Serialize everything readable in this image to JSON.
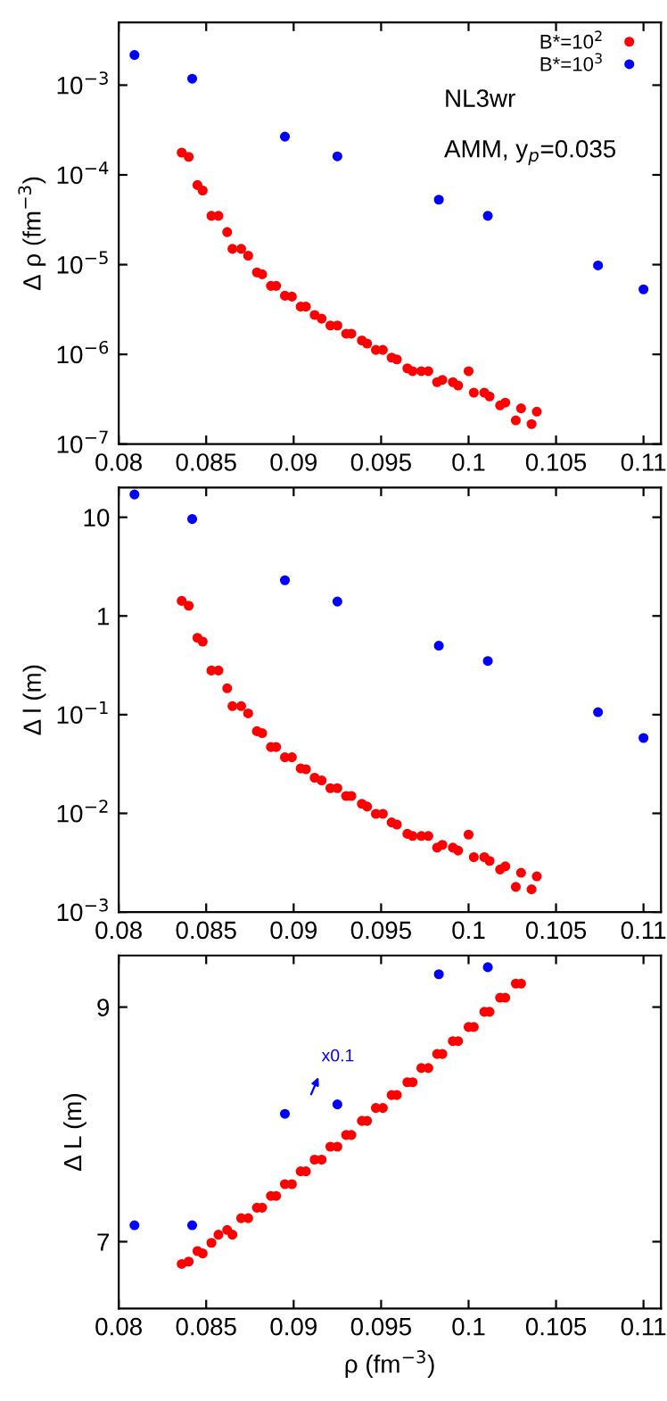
{
  "chart_data": [
    {
      "type": "scatter",
      "ylabel": "Δ ρ (fm$^{−3}$)",
      "log": "y",
      "legend": "top right",
      "marker": "circle",
      "xlim": [
        0.08,
        0.111
      ],
      "xticks": [
        0.08,
        0.085,
        0.09,
        0.095,
        0.1,
        0.105,
        0.11
      ],
      "ylim": [
        1e-07,
        0.005
      ],
      "yticks": [
        {
          "value": 1e-07,
          "label": "10$^{−7}$"
        },
        {
          "value": 1e-06,
          "label": "10$^{−6}$"
        },
        {
          "value": 1e-05,
          "label": "10$^{−5}$"
        },
        {
          "value": 0.0001,
          "label": "10$^{−4}$"
        },
        {
          "value": 0.001,
          "label": "10$^{−3}$"
        }
      ],
      "annotations": [
        "NL3wr",
        "AMM, y$_{p}$=0.035"
      ],
      "series": [
        {
          "name": "B*=10$^{2}$",
          "color": "#ff0000",
          "x": [
            0.0836,
            0.084,
            0.0845,
            0.0848,
            0.0853,
            0.0857,
            0.0862,
            0.0865,
            0.087,
            0.0874,
            0.0879,
            0.0882,
            0.0887,
            0.089,
            0.0895,
            0.0899,
            0.0904,
            0.0907,
            0.0912,
            0.0916,
            0.0921,
            0.0925,
            0.093,
            0.0933,
            0.0939,
            0.0942,
            0.0947,
            0.0951,
            0.0956,
            0.0959,
            0.0965,
            0.0968,
            0.0973,
            0.0977,
            0.0982,
            0.0985,
            0.0991,
            0.0994,
            0.1,
            0.1003,
            0.1009,
            0.1012,
            0.1018,
            0.1021,
            0.1027,
            0.103,
            0.1036,
            0.1039
          ],
          "values": [
            0.000177,
            0.000159,
            7.7e-05,
            6.7e-05,
            3.5e-05,
            3.5e-05,
            2.3e-05,
            1.5e-05,
            1.5e-05,
            1.26e-05,
            8.2e-06,
            7.8e-06,
            5.8e-06,
            5.8e-06,
            4.5e-06,
            4.4e-06,
            3.4e-06,
            3.4e-06,
            2.75e-06,
            2.5e-06,
            2.1e-06,
            2.1e-06,
            1.7e-06,
            1.7e-06,
            1.43e-06,
            1.32e-06,
            1.12e-06,
            1.12e-06,
            9.2e-07,
            8.8e-07,
            7e-07,
            6.5e-07,
            6.5e-07,
            6.5e-07,
            4.9e-07,
            5.2e-07,
            4.9e-07,
            4.5e-07,
            6.5e-07,
            3.75e-07,
            3.75e-07,
            3.4e-07,
            2.7e-07,
            2.9e-07,
            1.84e-07,
            2.5e-07,
            1.67e-07,
            2.3e-07
          ]
        },
        {
          "name": "B*=10$^{3}$",
          "color": "#0000ff",
          "x": [
            0.0809,
            0.0842,
            0.0895,
            0.0925,
            0.0983,
            0.1011,
            0.1074,
            0.11
          ],
          "values": [
            0.00217,
            0.00118,
            0.000267,
            0.000161,
            5.3e-05,
            3.5e-05,
            9.8e-06,
            5.3e-06
          ]
        }
      ]
    },
    {
      "type": "scatter",
      "ylabel": "Δ l (m)",
      "log": "y",
      "marker": "circle",
      "xlim": [
        0.08,
        0.111
      ],
      "xticks": [
        0.08,
        0.085,
        0.09,
        0.095,
        0.1,
        0.105,
        0.11
      ],
      "ylim": [
        0.001,
        20
      ],
      "yticks": [
        {
          "value": 0.001,
          "label": "10$^{−3}$"
        },
        {
          "value": 0.01,
          "label": "10$^{−2}$"
        },
        {
          "value": 0.1,
          "label": "10$^{−1}$"
        },
        1,
        10
      ],
      "series": [
        {
          "color": "#ff0000",
          "x": [
            0.0836,
            0.084,
            0.0845,
            0.0848,
            0.0853,
            0.0857,
            0.0862,
            0.0865,
            0.087,
            0.0874,
            0.0879,
            0.0882,
            0.0887,
            0.089,
            0.0895,
            0.0899,
            0.0904,
            0.0907,
            0.0912,
            0.0916,
            0.0921,
            0.0925,
            0.093,
            0.0933,
            0.0939,
            0.0942,
            0.0947,
            0.0951,
            0.0956,
            0.0959,
            0.0965,
            0.0968,
            0.0973,
            0.0977,
            0.0982,
            0.0985,
            0.0991,
            0.0994,
            0.1,
            0.1003,
            0.1009,
            0.1012,
            0.1018,
            0.1021,
            0.1027,
            0.103,
            0.1036,
            0.1039
          ],
          "values": [
            1.42,
            1.27,
            0.6,
            0.55,
            0.28,
            0.28,
            0.185,
            0.122,
            0.122,
            0.103,
            0.068,
            0.065,
            0.047,
            0.047,
            0.037,
            0.037,
            0.0285,
            0.028,
            0.023,
            0.0216,
            0.018,
            0.018,
            0.015,
            0.015,
            0.0125,
            0.0117,
            0.0099,
            0.0099,
            0.0081,
            0.0077,
            0.0062,
            0.0059,
            0.0059,
            0.0059,
            0.0045,
            0.0048,
            0.0045,
            0.0042,
            0.0061,
            0.0036,
            0.0036,
            0.0033,
            0.0027,
            0.0029,
            0.0018,
            0.0025,
            0.0017,
            0.0023
          ]
        },
        {
          "color": "#0000ff",
          "x": [
            0.0809,
            0.0842,
            0.0895,
            0.0925,
            0.0983,
            0.1011,
            0.1074,
            0.11
          ],
          "values": [
            17,
            9.6,
            2.3,
            1.4,
            0.5,
            0.35,
            0.106,
            0.058
          ]
        }
      ]
    },
    {
      "type": "scatter",
      "ylabel": "Δ L (m)",
      "xlabel": "ρ (fm$^{−3}$)",
      "marker": "circle",
      "xlim": [
        0.08,
        0.111
      ],
      "xticks": [
        0.08,
        0.085,
        0.09,
        0.095,
        0.1,
        0.105,
        0.11
      ],
      "ylim": [
        6.43,
        9.44
      ],
      "yticks": [
        7,
        9
      ],
      "annotations": [
        "x0.1"
      ],
      "series": [
        {
          "color": "#ff0000",
          "x": [
            0.0836,
            0.084,
            0.0845,
            0.0848,
            0.0853,
            0.0857,
            0.0862,
            0.0865,
            0.087,
            0.0874,
            0.0879,
            0.0882,
            0.0887,
            0.089,
            0.0895,
            0.0899,
            0.0904,
            0.0907,
            0.0912,
            0.0916,
            0.0921,
            0.0925,
            0.093,
            0.0933,
            0.0939,
            0.0942,
            0.0947,
            0.0951,
            0.0956,
            0.0959,
            0.0965,
            0.0968,
            0.0973,
            0.0977,
            0.0982,
            0.0985,
            0.0991,
            0.0994,
            0.1,
            0.1003,
            0.1009,
            0.1012,
            0.1018,
            0.1021,
            0.1027,
            0.103
          ],
          "values": [
            6.81,
            6.83,
            6.92,
            6.9,
            6.99,
            7.06,
            7.1,
            7.06,
            7.2,
            7.2,
            7.29,
            7.29,
            7.39,
            7.39,
            7.49,
            7.49,
            7.6,
            7.6,
            7.7,
            7.7,
            7.81,
            7.81,
            7.91,
            7.91,
            8.03,
            8.03,
            8.14,
            8.14,
            8.25,
            8.25,
            8.36,
            8.36,
            8.48,
            8.48,
            8.6,
            8.6,
            8.71,
            8.71,
            8.83,
            8.83,
            8.96,
            8.96,
            9.08,
            9.08,
            9.2,
            9.2
          ]
        },
        {
          "color": "#0000ff",
          "x": [
            0.0809,
            0.0842,
            0.0895,
            0.0925,
            0.0983,
            0.1011
          ],
          "values": [
            7.14,
            7.14,
            8.09,
            8.17,
            9.28,
            9.34
          ]
        }
      ]
    }
  ]
}
